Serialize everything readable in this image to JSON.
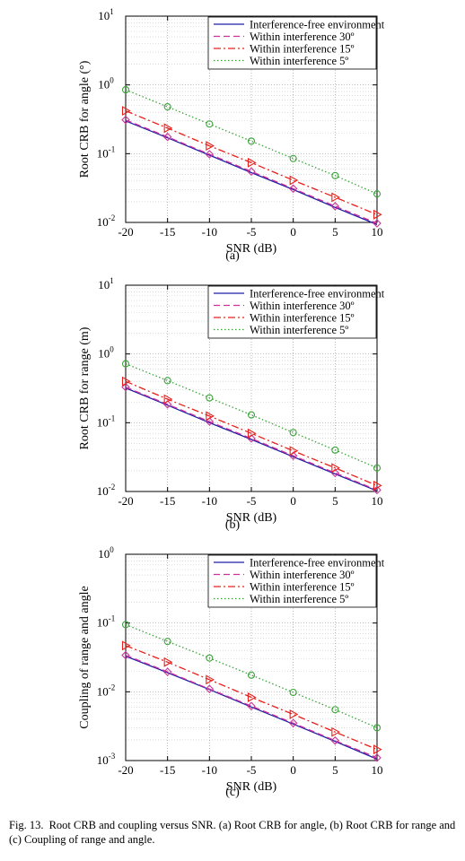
{
  "chart_data": [
    {
      "type": "line",
      "panel_label": "(a)",
      "xlabel": "SNR (dB)",
      "ylabel": "Root CRB for angle (°)",
      "x": [
        -20,
        -15,
        -10,
        -5,
        0,
        5,
        10
      ],
      "xlim": [
        -20,
        10
      ],
      "ylim_log10": [
        -2,
        1
      ],
      "yscale": "log",
      "grid": true,
      "legend_position": "top-right",
      "xticks": [
        "-20",
        "-15",
        "-10",
        "-5",
        "0",
        "5",
        "10"
      ],
      "ytick_bases": [
        "10",
        "10",
        "10",
        "10"
      ],
      "ytick_exps": [
        "-2",
        "-1",
        "0",
        "1"
      ],
      "series": [
        {
          "name": "Interference-free environment",
          "values": [
            0.3,
            0.17,
            0.095,
            0.053,
            0.03,
            0.0165,
            0.0093
          ],
          "color": "#1f1fa8",
          "marker": "none",
          "dash": "solid"
        },
        {
          "name": "Within interference 30º",
          "values": [
            0.31,
            0.175,
            0.098,
            0.055,
            0.031,
            0.0172,
            0.0097
          ],
          "color": "#cc3399",
          "marker": "diamond",
          "dash": "dashed"
        },
        {
          "name": "Within interference 15º",
          "values": [
            0.42,
            0.235,
            0.13,
            0.074,
            0.041,
            0.0232,
            0.013
          ],
          "color": "#e8201c",
          "marker": "triangle",
          "dash": "dashdot"
        },
        {
          "name": "Within interference 5º",
          "values": [
            0.85,
            0.48,
            0.27,
            0.152,
            0.085,
            0.048,
            0.026
          ],
          "color": "#3aa33a",
          "marker": "circle",
          "dash": "dotted"
        }
      ]
    },
    {
      "type": "line",
      "panel_label": "(b)",
      "xlabel": "SNR (dB)",
      "ylabel": "Root CRB for range (m)",
      "x": [
        -20,
        -15,
        -10,
        -5,
        0,
        5,
        10
      ],
      "xlim": [
        -20,
        10
      ],
      "ylim_log10": [
        -2,
        1
      ],
      "yscale": "log",
      "grid": true,
      "legend_position": "top-right",
      "xticks": [
        "-20",
        "-15",
        "-10",
        "-5",
        "0",
        "5",
        "10"
      ],
      "ytick_bases": [
        "10",
        "10",
        "10",
        "10"
      ],
      "ytick_exps": [
        "-2",
        "-1",
        "0",
        "1"
      ],
      "series": [
        {
          "name": "Interference-free environment",
          "values": [
            0.32,
            0.18,
            0.1,
            0.057,
            0.032,
            0.018,
            0.0102
          ],
          "color": "#1f1fa8",
          "marker": "none",
          "dash": "solid"
        },
        {
          "name": "Within interference 30º",
          "values": [
            0.33,
            0.185,
            0.104,
            0.059,
            0.033,
            0.0186,
            0.0105
          ],
          "color": "#cc3399",
          "marker": "diamond",
          "dash": "dashed"
        },
        {
          "name": "Within interference 15º",
          "values": [
            0.4,
            0.22,
            0.125,
            0.07,
            0.039,
            0.022,
            0.0122
          ],
          "color": "#e8201c",
          "marker": "triangle",
          "dash": "dashdot"
        },
        {
          "name": "Within interference 5º",
          "values": [
            0.72,
            0.41,
            0.23,
            0.13,
            0.072,
            0.04,
            0.022
          ],
          "color": "#3aa33a",
          "marker": "circle",
          "dash": "dotted"
        }
      ]
    },
    {
      "type": "line",
      "panel_label": "(c)",
      "xlabel": "SNR (dB)",
      "ylabel": "Coupling of range and angle",
      "x": [
        -20,
        -15,
        -10,
        -5,
        0,
        5,
        10
      ],
      "xlim": [
        -20,
        10
      ],
      "ylim_log10": [
        -3,
        0
      ],
      "yscale": "log",
      "grid": true,
      "legend_position": "top-right",
      "xticks": [
        "-20",
        "-15",
        "-10",
        "-5",
        "0",
        "5",
        "10"
      ],
      "ytick_bases": [
        "10",
        "10",
        "10",
        "10"
      ],
      "ytick_exps": [
        "-3",
        "-2",
        "-1",
        "0"
      ],
      "series": [
        {
          "name": "Interference-free environment",
          "values": [
            0.033,
            0.019,
            0.0108,
            0.006,
            0.0034,
            0.0019,
            0.00105
          ],
          "color": "#1f1fa8",
          "marker": "none",
          "dash": "solid"
        },
        {
          "name": "Within interference 30º",
          "values": [
            0.034,
            0.0195,
            0.011,
            0.0062,
            0.0035,
            0.00195,
            0.0011
          ],
          "color": "#cc3399",
          "marker": "diamond",
          "dash": "dashed"
        },
        {
          "name": "Within interference 15º",
          "values": [
            0.047,
            0.027,
            0.015,
            0.0083,
            0.0047,
            0.0026,
            0.00145
          ],
          "color": "#e8201c",
          "marker": "triangle",
          "dash": "dashdot"
        },
        {
          "name": "Within interference 5º",
          "values": [
            0.095,
            0.054,
            0.031,
            0.0175,
            0.0098,
            0.0055,
            0.003
          ],
          "color": "#3aa33a",
          "marker": "circle",
          "dash": "dotted"
        }
      ]
    }
  ],
  "figure_caption": {
    "label": "Fig. 13.",
    "text": "Root CRB and coupling versus SNR. (a) Root CRB for angle, (b) Root CRB for range and (c) Coupling of range and angle."
  }
}
